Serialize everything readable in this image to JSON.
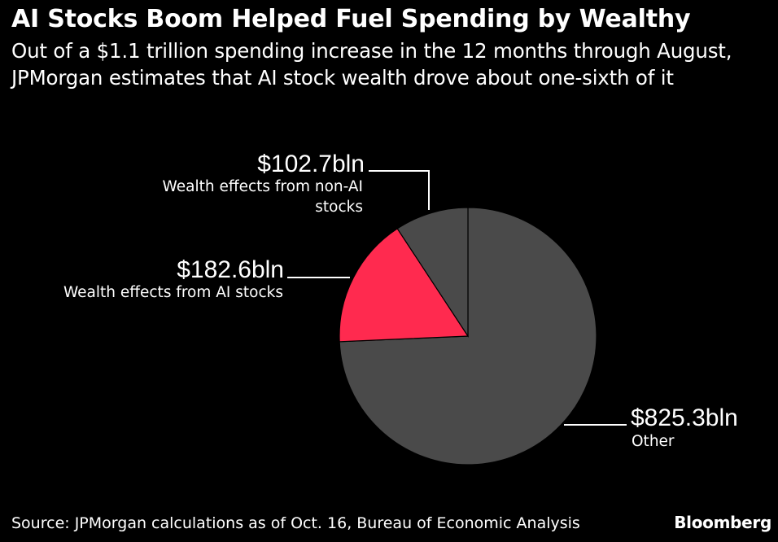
{
  "chart_data": {
    "type": "pie",
    "title": "AI Stocks Boom Helped Fuel Spending by Wealthy",
    "subtitle": "Out of a $1.1 trillion spending increase in the 12 months through August, JPMorgan estimates that AI stock wealth drove about one-sixth of it",
    "slices": [
      {
        "label": "Other",
        "value_label": "$825.3bln",
        "value": 825.3,
        "color": "#4a4a4a"
      },
      {
        "label": "Wealth effects from AI stocks",
        "value_label": "$182.6bln",
        "value": 182.6,
        "color": "#ff2a4f"
      },
      {
        "label": "Wealth effects from non-AI stocks",
        "value_label": "$102.7bln",
        "value": 102.7,
        "color": "#4a4a4a"
      }
    ]
  },
  "footer": {
    "source": "Source: JPMorgan calculations as of Oct. 16, Bureau of Economic Analysis",
    "brand": "Bloomberg"
  }
}
